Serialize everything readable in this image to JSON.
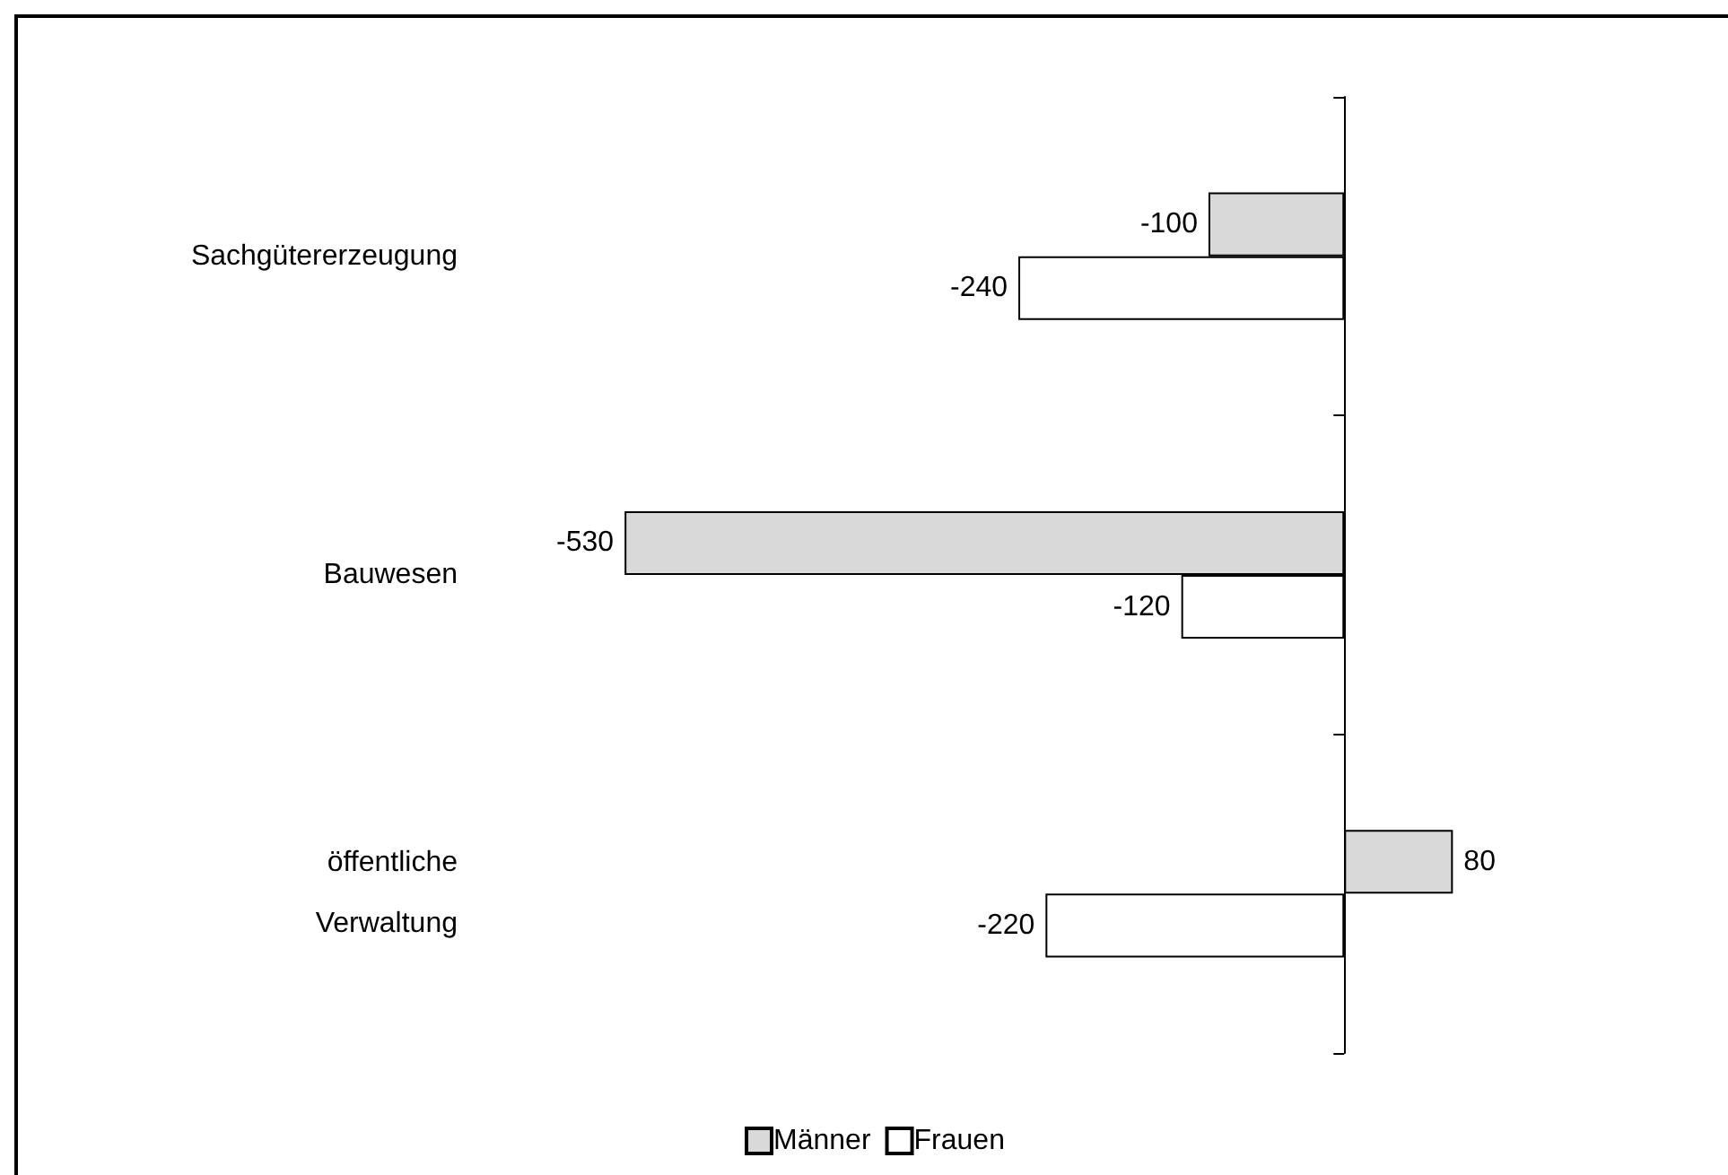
{
  "chart_data": {
    "type": "bar",
    "orientation": "horizontal",
    "categories": [
      "Sachgütererzeugung",
      "Bauwesen",
      "öffentliche\nVerwaltung"
    ],
    "series": [
      {
        "name": "Männer",
        "color": "#d9d9d9",
        "values": [
          -100,
          -530,
          80
        ]
      },
      {
        "name": "Frauen",
        "color": "#ffffff",
        "values": [
          -240,
          -120,
          -220
        ]
      }
    ],
    "data_labels": true,
    "legend": "bottom",
    "tick_labels": "y"
  }
}
